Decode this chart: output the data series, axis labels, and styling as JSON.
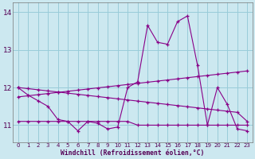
{
  "xlabel": "Windchill (Refroidissement éolien,°C)",
  "background_color": "#cce8f0",
  "grid_color": "#99ccd9",
  "line_color": "#880088",
  "x_values": [
    0,
    1,
    2,
    3,
    4,
    5,
    6,
    7,
    8,
    9,
    10,
    11,
    12,
    13,
    14,
    15,
    16,
    17,
    18,
    19,
    20,
    21,
    22,
    23
  ],
  "series_main": [
    12.0,
    11.8,
    11.65,
    11.5,
    11.15,
    11.1,
    10.85,
    11.1,
    11.05,
    10.9,
    10.95,
    12.0,
    12.15,
    13.65,
    13.2,
    13.15,
    13.75,
    13.9,
    12.6,
    11.0,
    12.0,
    11.55,
    10.9,
    10.85
  ],
  "series_trend_up": [
    11.75,
    11.78,
    11.81,
    11.84,
    11.87,
    11.9,
    11.93,
    11.96,
    11.99,
    12.02,
    12.05,
    12.08,
    12.11,
    12.14,
    12.17,
    12.2,
    12.23,
    12.26,
    12.29,
    12.32,
    12.35,
    12.38,
    12.41,
    12.44
  ],
  "series_trend_down": [
    12.0,
    11.97,
    11.94,
    11.91,
    11.88,
    11.85,
    11.82,
    11.79,
    11.76,
    11.73,
    11.7,
    11.67,
    11.64,
    11.61,
    11.58,
    11.55,
    11.52,
    11.49,
    11.46,
    11.43,
    11.4,
    11.37,
    11.34,
    11.1
  ],
  "series_flat": [
    11.1,
    11.1,
    11.1,
    11.1,
    11.1,
    11.1,
    11.1,
    11.1,
    11.1,
    11.1,
    11.1,
    11.1,
    11.0,
    11.0,
    11.0,
    11.0,
    11.0,
    11.0,
    11.0,
    11.0,
    11.0,
    11.0,
    11.0,
    11.0
  ],
  "ylim": [
    10.55,
    14.25
  ],
  "yticks": [
    11,
    12,
    13,
    14
  ],
  "xlim": [
    -0.5,
    23.5
  ]
}
